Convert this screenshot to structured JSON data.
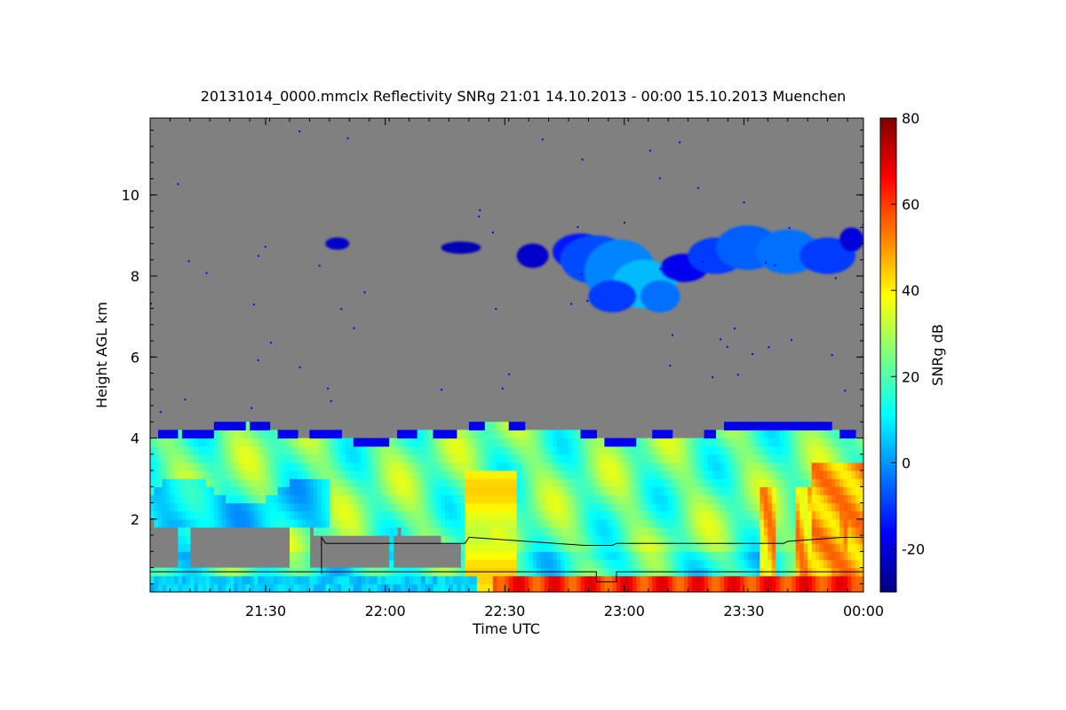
{
  "chart_data": {
    "type": "heatmap",
    "title": "20131014_0000.mmclx Reflectivity SNRg   21:01 14.10.2013 - 00:00 15.10.2013 Muenchen",
    "xlabel": "Time UTC",
    "ylabel": "Height AGL km",
    "colorbar_label": "SNRg dB",
    "x_range": [
      "21:01",
      "00:00"
    ],
    "y_range_km": [
      0.2,
      11.9
    ],
    "x_ticks": [
      "21:30",
      "22:00",
      "22:30",
      "23:00",
      "23:30",
      "00:00"
    ],
    "x_tick_minutes": [
      29,
      59,
      89,
      119,
      149,
      179
    ],
    "y_ticks": [
      2,
      4,
      6,
      8,
      10
    ],
    "colorbar_range_db": [
      -30,
      80
    ],
    "colorbar_ticks": [
      -20,
      0,
      20,
      40,
      60,
      80
    ],
    "colormap": [
      "#00007f",
      "#0000ff",
      "#007fff",
      "#00ffff",
      "#7fff7f",
      "#ffff00",
      "#ff7f00",
      "#ff0000",
      "#7f0000"
    ],
    "no_signal_color": "#808080",
    "features": [
      {
        "name": "stratiform precipitation layer",
        "top_km": [
          3.9,
          4.3
        ],
        "snr_db": [
          0,
          40
        ]
      },
      {
        "name": "upper cloud layer",
        "time_span": [
          "22:25",
          "00:00"
        ],
        "height_km": [
          7.0,
          9.2
        ],
        "snr_db": [
          -25,
          10
        ]
      },
      {
        "name": "bright band",
        "height_km": [
          0.2,
          0.5
        ],
        "time_span": [
          "22:20",
          "00:00"
        ],
        "snr_db": [
          55,
          75
        ]
      }
    ],
    "overlay_lines": [
      {
        "name": "upper boundary line",
        "points": [
          [
            "21:44",
            0.65
          ],
          [
            "21:44",
            1.55
          ],
          [
            "21:45",
            1.4
          ],
          [
            "22:20",
            1.4
          ],
          [
            "22:21",
            1.55
          ],
          [
            "22:50",
            1.35
          ],
          [
            "22:57",
            1.35
          ],
          [
            "22:58",
            1.4
          ],
          [
            "23:40",
            1.4
          ],
          [
            "23:41",
            1.45
          ],
          [
            "23:55",
            1.55
          ],
          [
            "00:00",
            1.55
          ]
        ]
      },
      {
        "name": "lower boundary line",
        "points": [
          [
            "21:01",
            0.7
          ],
          [
            "22:53",
            0.7
          ],
          [
            "22:53",
            0.45
          ],
          [
            "22:58",
            0.45
          ],
          [
            "22:58",
            0.7
          ],
          [
            "00:00",
            0.7
          ]
        ]
      }
    ]
  }
}
